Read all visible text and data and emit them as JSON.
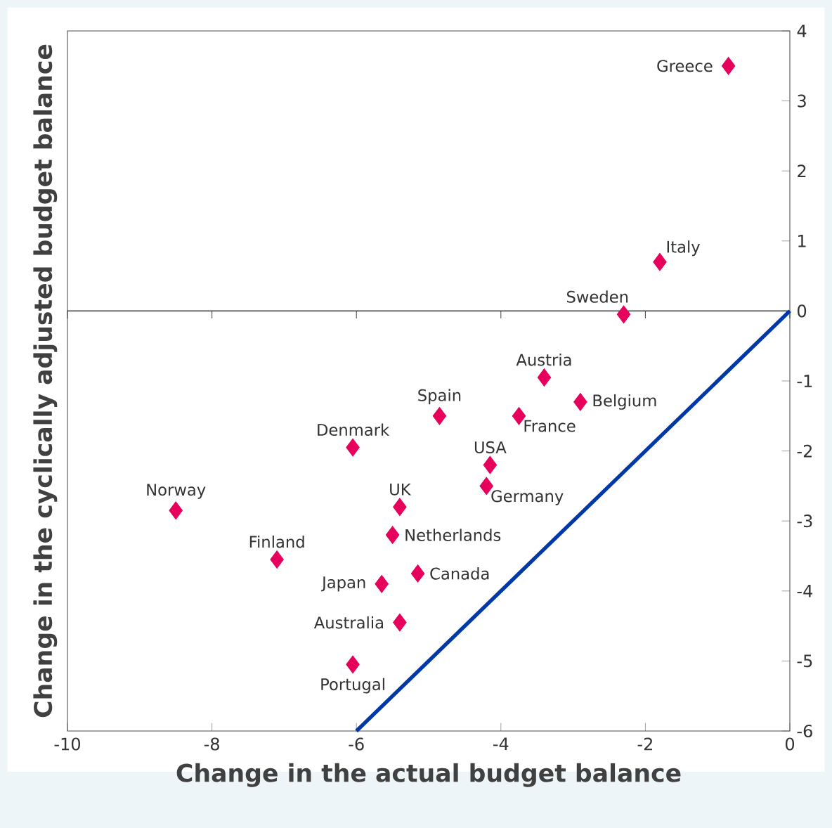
{
  "chart_data": {
    "type": "scatter",
    "xlabel": "Change in the actual budget balance",
    "ylabel": "Change in the cyclically adjusted budget balance",
    "xlim": [
      -10,
      0
    ],
    "ylim": [
      -6,
      4
    ],
    "xticks": [
      -10,
      -8,
      -6,
      -4,
      -2,
      0
    ],
    "yticks": [
      4,
      3,
      2,
      1,
      0,
      -1,
      -2,
      -3,
      -4,
      -5,
      -6
    ],
    "marker": "diamond",
    "grid": false,
    "ref_lines": [
      {
        "axis": "y",
        "value": 0
      }
    ],
    "series": [
      {
        "color": "#e6005c",
        "x": [
          -0.85,
          -1.8,
          -2.3,
          -3.4,
          -2.9,
          -3.75,
          -4.85,
          -6.05,
          -4.15,
          -4.2,
          -5.4,
          -8.5,
          -5.5,
          -7.1,
          -5.15,
          -5.65,
          -5.4,
          -6.05
        ],
        "values": [
          3.5,
          0.7,
          -0.05,
          -0.95,
          -1.3,
          -1.5,
          -1.5,
          -1.95,
          -2.2,
          -2.5,
          -2.8,
          -2.85,
          -3.2,
          -3.55,
          -3.75,
          -3.9,
          -4.45,
          -5.05
        ]
      },
      {
        "type": "line",
        "color": "#0038a8",
        "marker": "none",
        "x": [
          -6,
          0
        ],
        "values": [
          -6,
          0
        ]
      }
    ],
    "annotations": [
      {
        "text": "Greece",
        "x": -0.85,
        "y": 3.5
      },
      {
        "text": "Italy",
        "x": -1.8,
        "y": 0.7
      },
      {
        "text": "Sweden",
        "x": -2.3,
        "y": -0.05
      },
      {
        "text": "Austria",
        "x": -3.4,
        "y": -0.95
      },
      {
        "text": "Belgium",
        "x": -2.9,
        "y": -1.3
      },
      {
        "text": "France",
        "x": -3.75,
        "y": -1.5
      },
      {
        "text": "Spain",
        "x": -4.85,
        "y": -1.5
      },
      {
        "text": "Denmark",
        "x": -6.05,
        "y": -1.95
      },
      {
        "text": "USA",
        "x": -4.15,
        "y": -2.2
      },
      {
        "text": "Germany",
        "x": -4.2,
        "y": -2.5
      },
      {
        "text": "UK",
        "x": -5.4,
        "y": -2.8
      },
      {
        "text": "Norway",
        "x": -8.5,
        "y": -2.85
      },
      {
        "text": "Netherlands",
        "x": -5.5,
        "y": -3.2
      },
      {
        "text": "Finland",
        "x": -7.1,
        "y": -3.55
      },
      {
        "text": "Canada",
        "x": -5.15,
        "y": -3.75
      },
      {
        "text": "Japan",
        "x": -5.65,
        "y": -3.9
      },
      {
        "text": "Australia",
        "x": -5.4,
        "y": -4.45
      },
      {
        "text": "Portugal",
        "x": -6.05,
        "y": -5.05
      }
    ]
  }
}
